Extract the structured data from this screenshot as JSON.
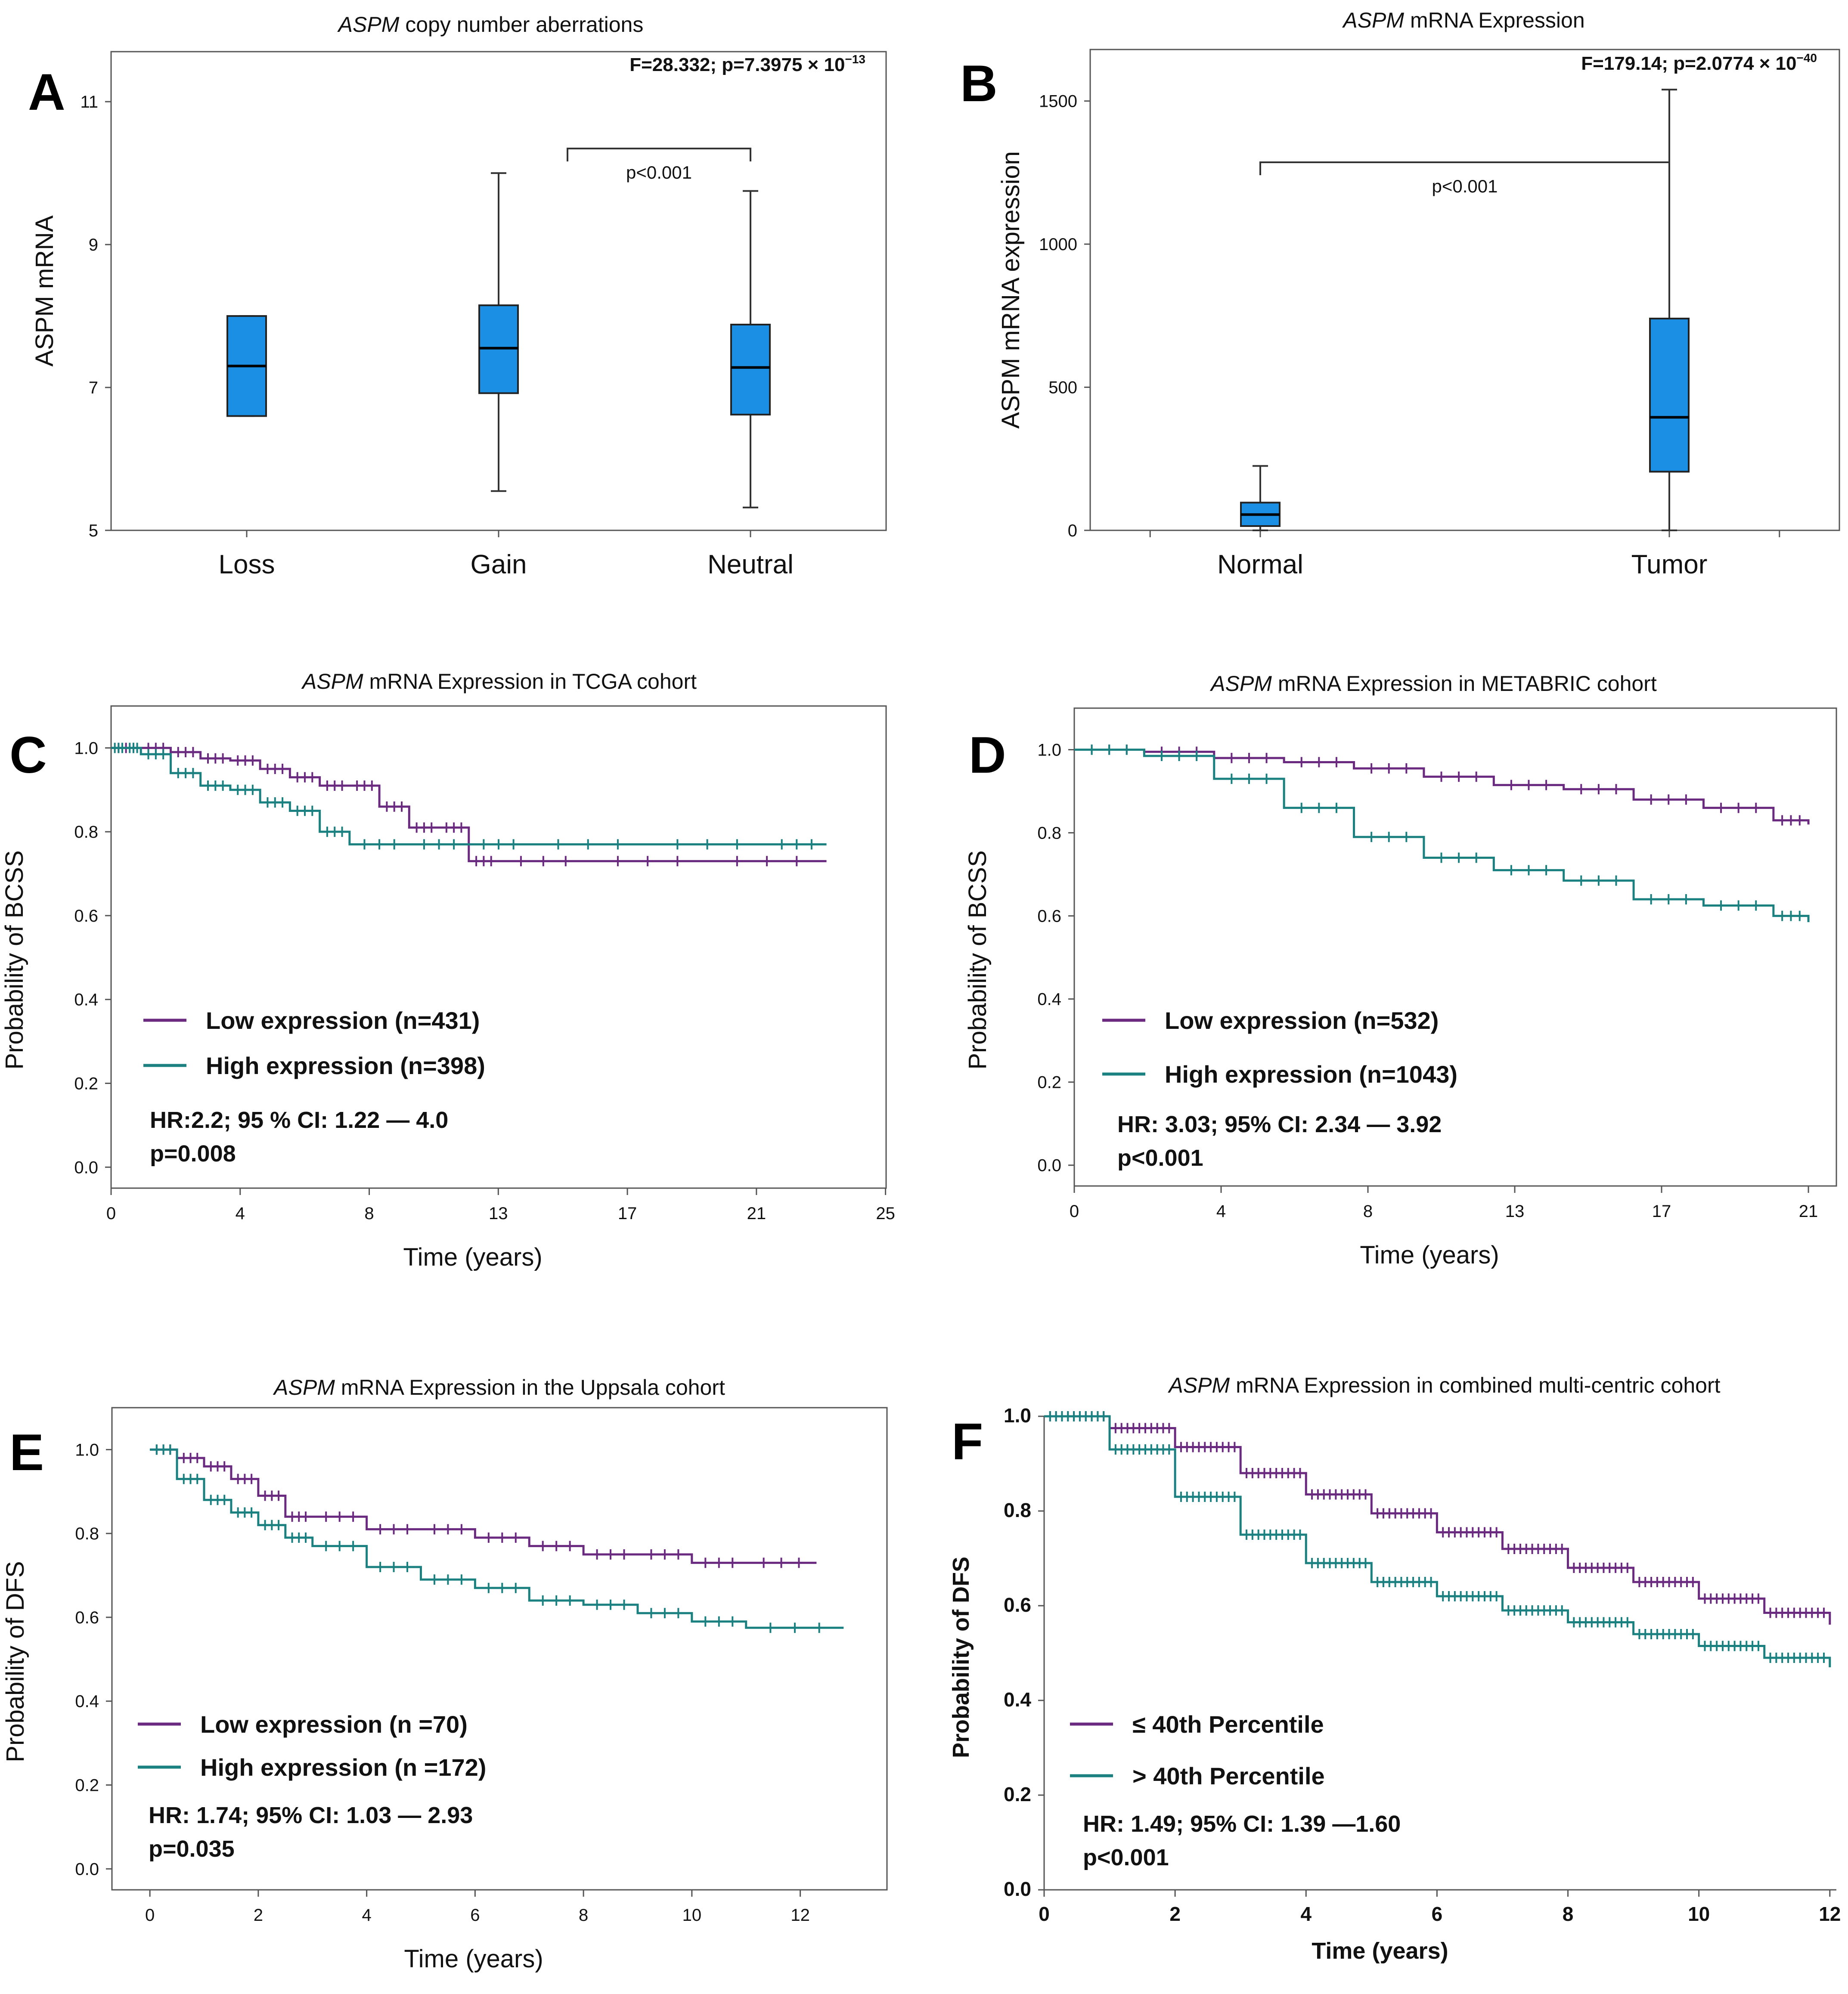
{
  "colors": {
    "low": "#6a2a7f",
    "high": "#1a8080",
    "box": "#1a8fe3"
  },
  "chart_data": [
    {
      "id": "A",
      "panel_letter": "A",
      "type": "box",
      "title_italic": "ASPM",
      "title_rest": " copy number aberrations",
      "stats_text": "F=28.332; p=7.3975 × 10",
      "stats_sup": "−13",
      "ylabel": "ASPM mRNA",
      "xlabel": "",
      "categories": [
        "Loss",
        "Gain",
        "Neutral"
      ],
      "ylim": [
        5,
        11.7
      ],
      "yticks": [
        "5",
        "7",
        "9",
        "11"
      ],
      "boxes": [
        {
          "category": "Loss",
          "min": 6.6,
          "q1": 6.6,
          "median": 7.3,
          "q3": 8.0,
          "max": 8.0
        },
        {
          "category": "Gain",
          "min": 5.55,
          "q1": 6.92,
          "median": 7.55,
          "q3": 8.15,
          "max": 10.0
        },
        {
          "category": "Neutral",
          "min": 5.32,
          "q1": 6.62,
          "median": 7.28,
          "q3": 7.88,
          "max": 9.75
        }
      ],
      "bracket": {
        "from": "Gain",
        "to": "Neutral",
        "label": "p<0.001"
      }
    },
    {
      "id": "B",
      "panel_letter": "B",
      "type": "box",
      "title_italic": "ASPM",
      "title_rest": " mRNA Expression",
      "stats_text": "F=179.14; p=2.0774 × 10",
      "stats_sup": "−40",
      "ylabel": "ASPM mRNA expression",
      "xlabel": "",
      "categories": [
        "Normal",
        "Tumor"
      ],
      "ylim": [
        0,
        1680
      ],
      "yticks": [
        "0",
        "500",
        "1000",
        "1500"
      ],
      "boxes": [
        {
          "category": "Normal",
          "min": 0,
          "q1": 15,
          "median": 55,
          "q3": 97,
          "max": 225
        },
        {
          "category": "Tumor",
          "min": 0,
          "q1": 205,
          "median": 395,
          "q3": 740,
          "max": 1540
        }
      ],
      "bracket": {
        "from": "Normal",
        "to": "Tumor",
        "label": "p<0.001"
      }
    },
    {
      "id": "C",
      "panel_letter": "C",
      "type": "line",
      "title_italic": "ASPM",
      "title_rest": " mRNA Expression in TCGA cohort",
      "xlabel": "Time (years)",
      "ylabel": "Probability of BCSS",
      "xlim": [
        0,
        26
      ],
      "ylim": [
        -0.05,
        1.1
      ],
      "xticks": [
        "0",
        "4",
        "8",
        "13",
        "17",
        "21",
        "25"
      ],
      "yticks": [
        "0.0",
        "0.2",
        "0.4",
        "0.6",
        "0.8",
        "1.0"
      ],
      "series": [
        {
          "name": "Low expression  (n=431)",
          "color_key": "low",
          "x": [
            0,
            1,
            2,
            3,
            4,
            5,
            6,
            7,
            8,
            9,
            10,
            11,
            12,
            13,
            16,
            20,
            24
          ],
          "y": [
            1.0,
            1.0,
            0.99,
            0.975,
            0.97,
            0.95,
            0.93,
            0.91,
            0.91,
            0.86,
            0.81,
            0.81,
            0.73,
            0.73,
            0.73,
            0.73,
            0.73
          ]
        },
        {
          "name": "High expression (n=398)",
          "color_key": "high",
          "x": [
            0,
            0.5,
            1,
            2,
            3,
            4,
            5,
            6,
            7,
            8,
            10,
            12,
            14,
            18,
            22,
            24
          ],
          "y": [
            1.0,
            1.0,
            0.985,
            0.94,
            0.91,
            0.9,
            0.87,
            0.85,
            0.8,
            0.77,
            0.77,
            0.77,
            0.77,
            0.77,
            0.77,
            0.77
          ]
        }
      ],
      "hr_line1": "HR:2.2; 95 % CI: 1.22 — 4.0",
      "hr_line2": "p=0.008"
    },
    {
      "id": "D",
      "panel_letter": "D",
      "type": "line",
      "title_italic": "ASPM",
      "title_rest": " mRNA Expression in METABRIC cohort",
      "xlabel": "Time (years)",
      "ylabel": "Probability of BCSS",
      "xlim": [
        0,
        21.8
      ],
      "ylim": [
        -0.05,
        1.1
      ],
      "xticks": [
        "0",
        "4",
        "8",
        "13",
        "17",
        "21"
      ],
      "yticks": [
        "0.0",
        "0.2",
        "0.4",
        "0.6",
        "0.8",
        "1.0"
      ],
      "series": [
        {
          "name": "Low expression (n=532)",
          "color_key": "low",
          "x": [
            0,
            2,
            4,
            6,
            8,
            10,
            12,
            14,
            16,
            18,
            20,
            21
          ],
          "y": [
            1.0,
            0.995,
            0.98,
            0.97,
            0.955,
            0.935,
            0.915,
            0.905,
            0.88,
            0.86,
            0.83,
            0.82
          ]
        },
        {
          "name": "High expression (n=1043)",
          "color_key": "high",
          "x": [
            0,
            2,
            4,
            6,
            8,
            10,
            12,
            14,
            16,
            18,
            20,
            21
          ],
          "y": [
            1.0,
            0.985,
            0.93,
            0.86,
            0.79,
            0.74,
            0.71,
            0.685,
            0.64,
            0.625,
            0.6,
            0.585
          ]
        }
      ],
      "hr_line1": "HR: 3.03; 95% CI: 2.34 — 3.92",
      "hr_line2": "p<0.001"
    },
    {
      "id": "E",
      "panel_letter": "E",
      "type": "line",
      "title_italic": "ASPM",
      "title_rest": " mRNA Expression in the Uppsala cohort",
      "xlabel": "Time (years)",
      "ylabel": "Probability of DFS",
      "xlim": [
        -0.7,
        13.6
      ],
      "ylim": [
        -0.05,
        1.1
      ],
      "xticks": [
        "0",
        "2",
        "4",
        "6",
        "8",
        "10",
        "12"
      ],
      "yticks": [
        "0.0",
        "0.2",
        "0.4",
        "0.6",
        "0.8",
        "1.0"
      ],
      "series": [
        {
          "name": "Low expression  (n =70)",
          "color_key": "low",
          "x": [
            0,
            0.5,
            1,
            1.5,
            2,
            2.5,
            3,
            4,
            5,
            6,
            7,
            8,
            9,
            10,
            11,
            12.3
          ],
          "y": [
            1.0,
            0.98,
            0.96,
            0.93,
            0.89,
            0.84,
            0.84,
            0.81,
            0.81,
            0.79,
            0.77,
            0.75,
            0.75,
            0.73,
            0.73,
            0.73
          ]
        },
        {
          "name": "High expression    (n =172)",
          "color_key": "high",
          "x": [
            0,
            0.5,
            1,
            1.5,
            2,
            2.5,
            3,
            4,
            5,
            6,
            7,
            8,
            9,
            10,
            11,
            12.8
          ],
          "y": [
            1.0,
            0.93,
            0.88,
            0.85,
            0.82,
            0.79,
            0.77,
            0.72,
            0.69,
            0.67,
            0.64,
            0.63,
            0.61,
            0.59,
            0.575,
            0.575
          ]
        }
      ],
      "hr_line1": "HR: 1.74; 95% CI: 1.03 — 2.93",
      "hr_line2": "p=0.035"
    },
    {
      "id": "F",
      "panel_letter": "F",
      "type": "line",
      "title_italic": "ASPM",
      "title_rest": "  mRNA Expression in combined multi-centric  cohort",
      "xlabel": "Time (years)",
      "ylabel": "Probability of DFS",
      "xlim": [
        0,
        12.1
      ],
      "ylim": [
        0,
        1.0
      ],
      "xticks": [
        "0",
        "2",
        "4",
        "6",
        "8",
        "10",
        "12"
      ],
      "yticks": [
        "0.0",
        "0.2",
        "0.4",
        "0.6",
        "0.8",
        "1.0"
      ],
      "series": [
        {
          "name": "≤ 40th  Percentile",
          "color_key": "low",
          "x": [
            0,
            1,
            2,
            3,
            4,
            5,
            6,
            7,
            8,
            9,
            10,
            11,
            12
          ],
          "y": [
            1.0,
            0.975,
            0.935,
            0.88,
            0.835,
            0.795,
            0.755,
            0.72,
            0.68,
            0.65,
            0.615,
            0.585,
            0.56
          ]
        },
        {
          "name": "> 40th  Percentile",
          "color_key": "high",
          "x": [
            0,
            1,
            2,
            3,
            4,
            5,
            6,
            7,
            8,
            9,
            10,
            11,
            12
          ],
          "y": [
            1.0,
            0.93,
            0.83,
            0.75,
            0.69,
            0.65,
            0.62,
            0.59,
            0.565,
            0.54,
            0.515,
            0.49,
            0.47
          ]
        }
      ],
      "hr_line1": "HR: 1.49; 95% CI: 1.39 —1.60",
      "hr_line2": "p<0.001"
    }
  ]
}
